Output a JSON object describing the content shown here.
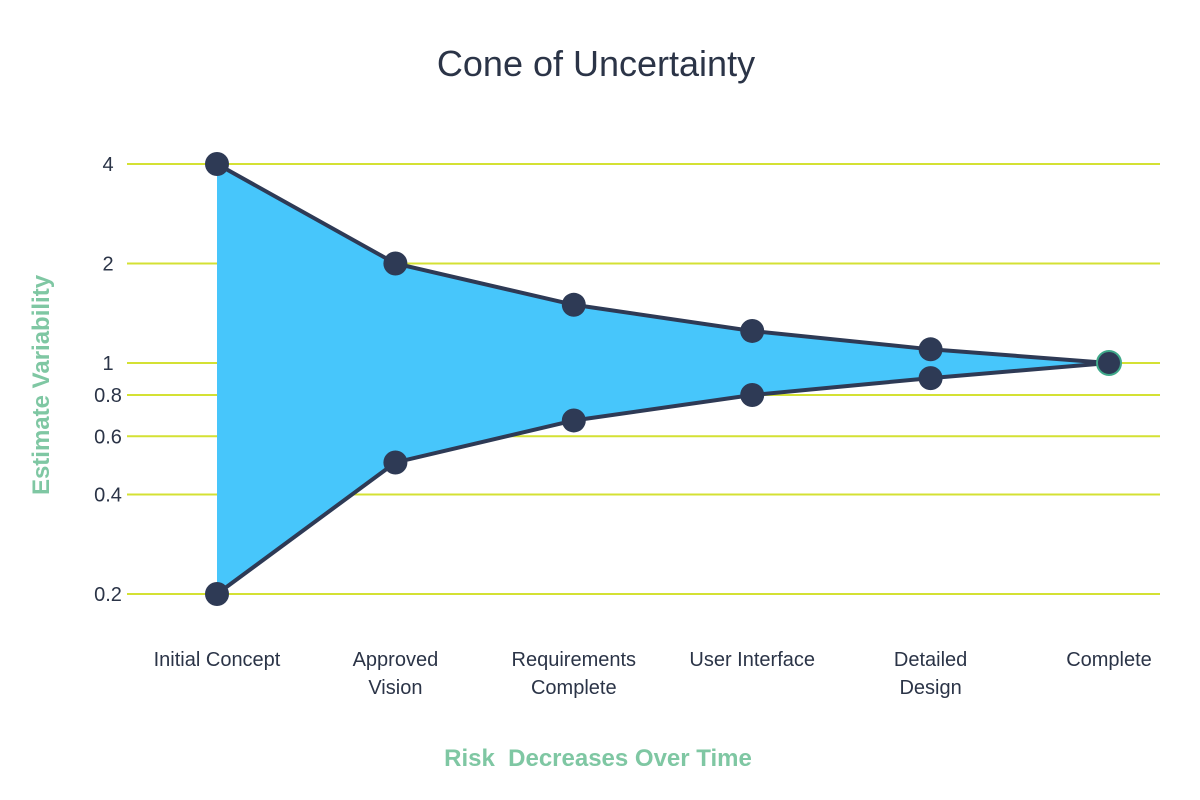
{
  "chart_data": {
    "type": "area",
    "title": "Cone of Uncertainty",
    "xlabel": "Risk  Decreases Over Time",
    "ylabel": "Estimate Variability",
    "y_scale": "log",
    "yticks": [
      0.2,
      0.4,
      0.6,
      0.8,
      1,
      2,
      4
    ],
    "ylim": [
      0.2,
      4
    ],
    "categories": [
      [
        "Initial Concept"
      ],
      [
        "Approved",
        "Vision"
      ],
      [
        "Requirements",
        "Complete"
      ],
      [
        "User Interface"
      ],
      [
        "Detailed",
        "Design"
      ],
      [
        "Complete"
      ]
    ],
    "series": [
      {
        "values": [
          4,
          2,
          1.5,
          1.25,
          1.1,
          1
        ]
      },
      {
        "values": [
          0.2,
          0.5,
          0.67,
          0.8,
          0.9,
          1
        ]
      }
    ],
    "grid": true,
    "colors": {
      "fill": "#47c6fb",
      "line": "#2e3a55",
      "marker": "#2e3a55",
      "final_marker_stroke": "#3fa98a",
      "grid": "#d4e134",
      "axis_label": "#7fc7a3",
      "text": "#2b3447"
    }
  }
}
